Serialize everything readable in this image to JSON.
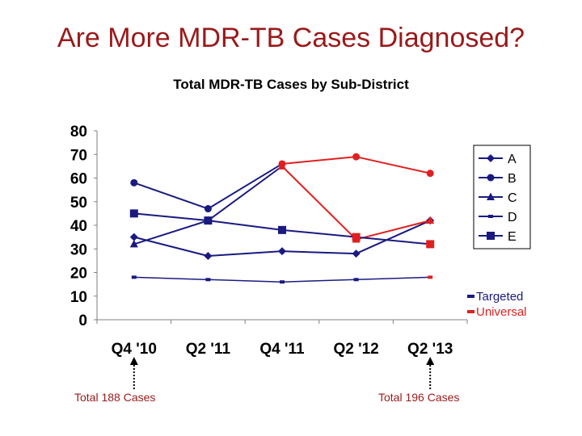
{
  "slide": {
    "title": "Are More MDR-TB Cases Diagnosed?"
  },
  "chart_data": {
    "type": "line",
    "title": "Total MDR-TB Cases by Sub-District",
    "xlabel": "",
    "ylabel": "",
    "categories": [
      "Q4 '10",
      "Q2 '11",
      "Q4 '11",
      "Q2 '12",
      "Q2 '13"
    ],
    "ylim": [
      0,
      80
    ],
    "yticks": [
      0,
      10,
      20,
      30,
      40,
      50,
      60,
      70,
      80
    ],
    "grid": false,
    "legend_position": "right",
    "series": [
      {
        "name": "A",
        "values": [
          35,
          27,
          29,
          28,
          42
        ],
        "color": "#1a1a80",
        "marker": "diamond"
      },
      {
        "name": "B",
        "values": [
          58,
          47,
          66,
          69,
          62
        ],
        "color": "#1a1a80",
        "marker": "circle",
        "segment_colors": [
          "#1a1a80",
          "#1a1a80",
          "#e02020",
          "#e02020"
        ],
        "marker_colors": [
          "#1a1a80",
          "#1a1a80",
          "#e02020",
          "#e02020",
          "#e02020"
        ]
      },
      {
        "name": "C",
        "values": [
          32,
          42,
          65,
          34,
          42
        ],
        "color": "#1a1a80",
        "marker": "triangle",
        "segment_colors": [
          "#1a1a80",
          "#1a1a80",
          "#e02020",
          "#e02020"
        ],
        "marker_colors": [
          "#1a1a80",
          "#1a1a80",
          "#e02020",
          "#e02020",
          "#e02020"
        ]
      },
      {
        "name": "D",
        "values": [
          18,
          17,
          16,
          17,
          18
        ],
        "color": "#1a1a80",
        "marker": "small-square",
        "marker_colors": [
          "#1a1a80",
          "#1a1a80",
          "#1a1a80",
          "#1a1a80",
          "#e02020"
        ]
      },
      {
        "name": "E",
        "values": [
          45,
          42,
          38,
          35,
          32
        ],
        "color": "#1a1a80",
        "marker": "square",
        "marker_colors": [
          "#1a1a80",
          "#1a1a80",
          "#1a1a80",
          "#e02020",
          "#e02020"
        ]
      }
    ],
    "group_legend": [
      {
        "label": "Targeted",
        "color": "#1a1a80"
      },
      {
        "label": "Universal",
        "color": "#e02020"
      }
    ],
    "annotations": [
      "Total 188 Cases",
      "Total 196 Cases"
    ]
  }
}
